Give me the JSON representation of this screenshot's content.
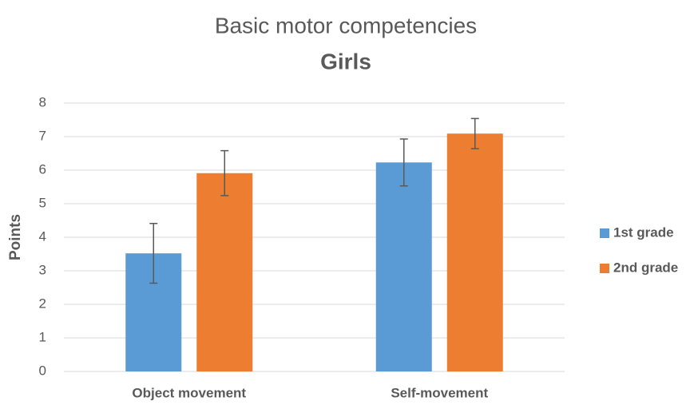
{
  "chart_data": {
    "type": "bar",
    "title": "Basic motor competencies",
    "subtitle": "Girls",
    "y_label": "Points",
    "categories": [
      "Object movement",
      "Self-movement"
    ],
    "series": [
      {
        "name": "1st grade",
        "color": "#5b9bd5",
        "values": [
          3.52,
          6.23
        ],
        "errors": [
          0.89,
          0.7
        ]
      },
      {
        "name": "2nd grade",
        "color": "#ed7d31",
        "values": [
          5.91,
          7.09
        ],
        "errors": [
          0.67,
          0.45
        ]
      }
    ],
    "ylim": [
      0,
      8
    ],
    "yticks": [
      0,
      1,
      2,
      3,
      4,
      5,
      6,
      7,
      8
    ],
    "grid": true,
    "legend": "right"
  }
}
